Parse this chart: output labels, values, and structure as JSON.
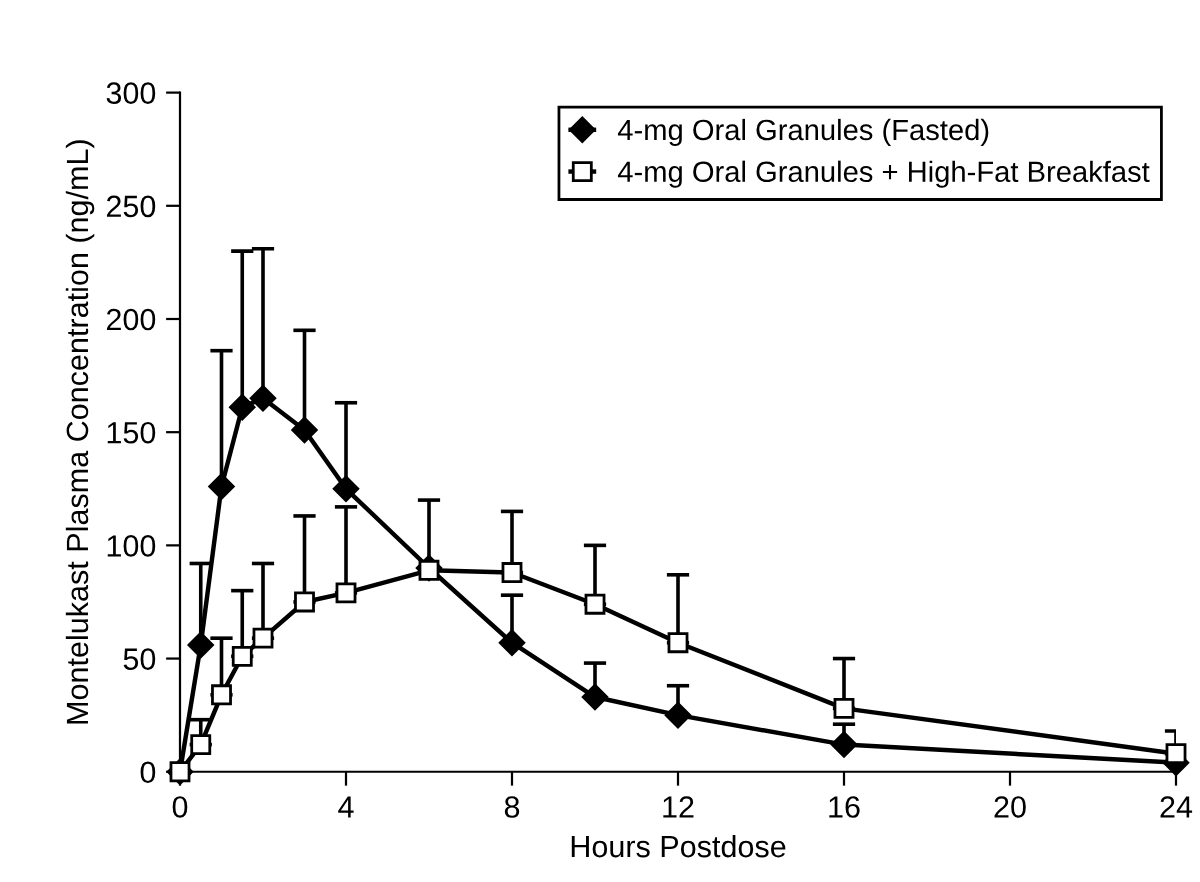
{
  "chart_data": {
    "type": "line",
    "xlabel": "Hours Postdose",
    "ylabel": "Montelukast Plasma Concentration (ng/mL)",
    "xlim": [
      0,
      24
    ],
    "xticks": [
      0,
      4,
      8,
      12,
      16,
      20,
      24
    ],
    "ylim": [
      0,
      300
    ],
    "yticks": [
      0,
      50,
      100,
      150,
      200,
      250,
      300
    ],
    "grid": false,
    "legend": "top right",
    "line_style": "solid",
    "series": [
      {
        "name": "4-mg Oral Granules (Fasted)",
        "color": "#000000",
        "marker": "diamond",
        "x": [
          0,
          0.5,
          1,
          1.5,
          2,
          3,
          4,
          6,
          8,
          10,
          12,
          16,
          24
        ],
        "values": [
          0,
          56,
          126,
          161,
          165,
          151,
          125,
          90,
          57,
          33,
          25,
          12,
          4
        ],
        "errors": [
          null,
          [
            56,
            92
          ],
          [
            126,
            186
          ],
          [
            161,
            230
          ],
          [
            165,
            231
          ],
          [
            151,
            195
          ],
          [
            125,
            163
          ],
          null,
          [
            57,
            78
          ],
          [
            33,
            48
          ],
          [
            25,
            38
          ],
          [
            12,
            21
          ],
          null
        ]
      },
      {
        "name": "4-mg Oral Granules + High-Fat Breakfast",
        "color": "#000000",
        "marker": "square",
        "x": [
          0,
          0.5,
          1,
          1.5,
          2,
          3,
          4,
          6,
          8,
          10,
          12,
          16,
          24
        ],
        "values": [
          0,
          12,
          34,
          51,
          59,
          75,
          79,
          89,
          88,
          74,
          57,
          28,
          8
        ],
        "errors": [
          null,
          [
            12,
            23
          ],
          [
            34,
            59
          ],
          [
            51,
            80
          ],
          [
            59,
            92
          ],
          [
            75,
            113
          ],
          [
            79,
            117
          ],
          [
            89,
            120
          ],
          [
            88,
            115
          ],
          [
            74,
            100
          ],
          [
            57,
            87
          ],
          [
            28,
            50
          ],
          [
            8,
            18
          ]
        ]
      }
    ]
  }
}
